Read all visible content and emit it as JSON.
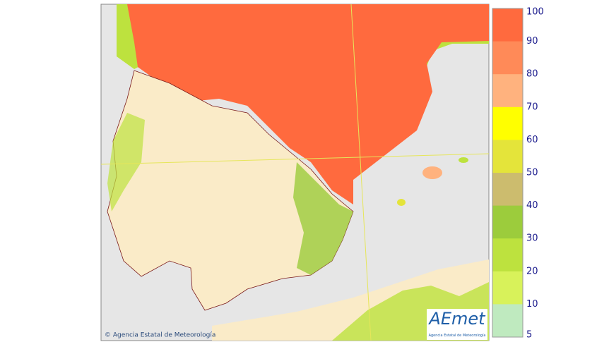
{
  "map": {
    "copyright": "© Agencia Estatal de Meteorología",
    "logo": {
      "name": "AEmet",
      "subtitle": "Agencia Estatal de Meteorología"
    },
    "legend": {
      "ticks": [
        100,
        90,
        80,
        70,
        60,
        50,
        40,
        30,
        20,
        10,
        5
      ],
      "colors": [
        "#ff6a3e",
        "#ff8a58",
        "#ffb27e",
        "#ffff00",
        "#e4e43a",
        "#ccbc6e",
        "#9ccc3c",
        "#bde23e",
        "#d8f25a",
        "#bfeabf"
      ]
    }
  }
}
